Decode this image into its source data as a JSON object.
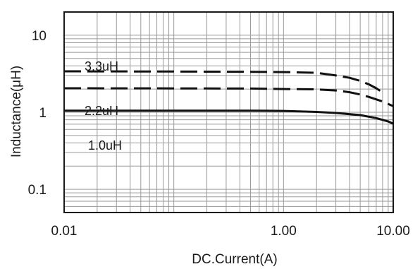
{
  "chart_data": {
    "type": "line",
    "title": "",
    "xlabel": "DC.Current(A)",
    "ylabel": "Inductance(μH)",
    "x_scale": "log",
    "y_scale": "log",
    "xlim": [
      0.01,
      10
    ],
    "ylim": [
      0.05,
      20
    ],
    "grid": true,
    "legend": "none",
    "x_ticks": [
      {
        "value": 0.01,
        "label": "0.01"
      },
      {
        "value": 1,
        "label": "1.00"
      },
      {
        "value": 10,
        "label": "10.00"
      }
    ],
    "y_ticks": [
      {
        "value": 0.1,
        "label": "0.1"
      },
      {
        "value": 1,
        "label": "1"
      },
      {
        "value": 10,
        "label": "10"
      }
    ],
    "series": [
      {
        "name": "3.3uH",
        "style": "dashed",
        "x": [
          0.01,
          0.1,
          0.5,
          1,
          2,
          3,
          4,
          5,
          6,
          7,
          7.6
        ],
        "y": [
          3.4,
          3.38,
          3.35,
          3.32,
          3.25,
          3.0,
          2.8,
          2.55,
          2.3,
          2.05,
          1.9
        ]
      },
      {
        "name": "2.2uH",
        "style": "dashed",
        "x": [
          0.01,
          0.1,
          0.5,
          1,
          2,
          3,
          4,
          5,
          6,
          8,
          10
        ],
        "y": [
          2.05,
          2.04,
          2.03,
          2.0,
          1.98,
          1.92,
          1.82,
          1.7,
          1.58,
          1.38,
          1.2
        ]
      },
      {
        "name": "1.0uH",
        "style": "solid",
        "x": [
          0.01,
          0.1,
          0.5,
          1,
          2,
          3,
          5,
          7,
          9,
          10
        ],
        "y": [
          1.05,
          1.05,
          1.05,
          1.04,
          1.01,
          0.98,
          0.92,
          0.84,
          0.76,
          0.71
        ]
      }
    ]
  }
}
